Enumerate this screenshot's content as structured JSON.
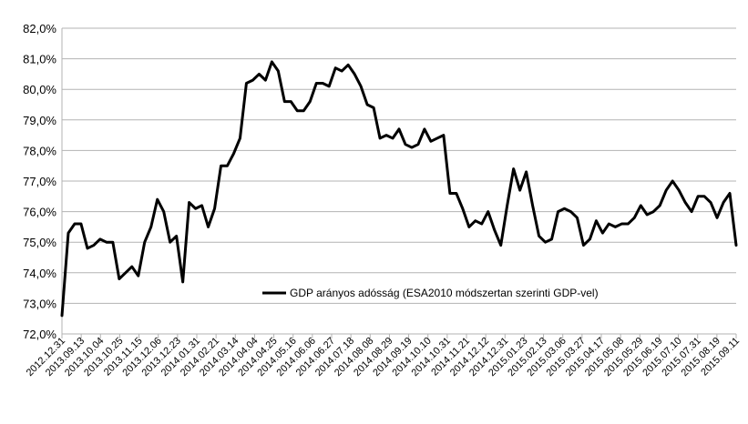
{
  "chart_data": {
    "type": "line",
    "title": "",
    "xlabel": "",
    "ylabel": "",
    "ylim": [
      72,
      82
    ],
    "yticks": [
      "72,0%",
      "73,0%",
      "74,0%",
      "75,0%",
      "76,0%",
      "77,0%",
      "78,0%",
      "79,0%",
      "80,0%",
      "81,0%",
      "82,0%"
    ],
    "grid": true,
    "legend": "center",
    "series_color": "#000000",
    "xtick_labels": [
      "2012.12.31",
      "2013.09.13",
      "2013.10.04",
      "2013.10.25",
      "2013.11.15",
      "2013.12.06",
      "2013.12.23",
      "2014.01.31",
      "2014.02.21",
      "2014.03.14",
      "2014.04.04",
      "2014.04.25",
      "2014.05.16",
      "2014.06.06",
      "2014.06.27",
      "2014.07.18",
      "2014.08.08",
      "2014.08.29",
      "2014.09.19",
      "2014.10.10",
      "2014.10.31",
      "2014.11.21",
      "2014.12.12",
      "2014.12.31",
      "2015.01.23",
      "2015.02.13",
      "2015.03.06",
      "2015.03.27",
      "2015.04.17",
      "2015.05.08",
      "2015.05.29",
      "2015.06.19",
      "2015.07.10",
      "2015.07.31",
      "2015.08.19",
      "2015.09.11"
    ],
    "series": [
      {
        "name": "GDP arányos adósság (ESA2010 módszertan szerinti GDP-vel)",
        "values": [
          72.6,
          75.3,
          75.6,
          75.6,
          74.8,
          74.9,
          75.1,
          75.0,
          75.0,
          73.8,
          74.0,
          74.2,
          73.9,
          75.0,
          75.5,
          76.4,
          76.0,
          75.0,
          75.2,
          73.7,
          76.3,
          76.1,
          76.2,
          75.5,
          76.1,
          77.5,
          77.5,
          77.9,
          78.4,
          80.2,
          80.3,
          80.5,
          80.3,
          80.9,
          80.6,
          79.6,
          79.6,
          79.3,
          79.3,
          79.6,
          80.2,
          80.2,
          80.1,
          80.7,
          80.6,
          80.8,
          80.5,
          80.1,
          79.5,
          79.4,
          78.4,
          78.5,
          78.4,
          78.7,
          78.2,
          78.1,
          78.2,
          78.7,
          78.3,
          78.4,
          78.5,
          76.6,
          76.6,
          76.1,
          75.5,
          75.7,
          75.6,
          76.0,
          75.4,
          74.9,
          76.2,
          77.4,
          76.7,
          77.3,
          76.2,
          75.2,
          75.0,
          75.1,
          76.0,
          76.1,
          76.0,
          75.8,
          74.9,
          75.1,
          75.7,
          75.3,
          75.6,
          75.5,
          75.6,
          75.6,
          75.8,
          76.2,
          75.9,
          76.0,
          76.2,
          76.7,
          77.0,
          76.7,
          76.3,
          76.0,
          76.5,
          76.5,
          76.3,
          75.8,
          76.3,
          76.6,
          74.9
        ]
      }
    ]
  }
}
